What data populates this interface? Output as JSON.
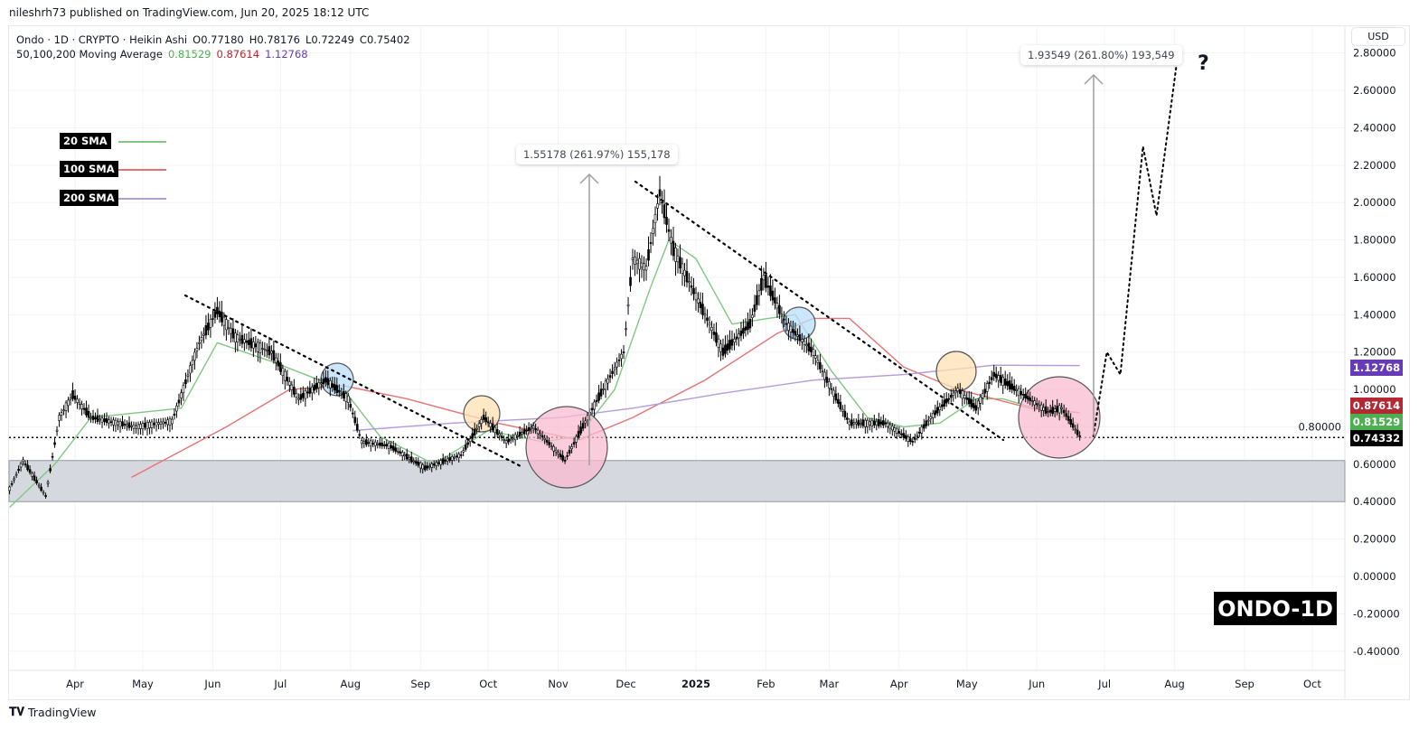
{
  "header": {
    "published": "nileshrh73 published on TradingView.com, Jun 20, 2025 18:12 UTC"
  },
  "legend": {
    "symbol": "Ondo · 1D · CRYPTO · Heikin Ashi",
    "open": "O0.77180",
    "high": "H0.78176",
    "low": "L0.72249",
    "close": "C0.75402",
    "ma_title": "50,100,200 Moving Average",
    "ma1": "0.81529",
    "ma2": "0.87614",
    "ma3": "1.12768"
  },
  "currency": "USD",
  "sma_labels": [
    {
      "label": "20 SMA",
      "color": "#81c784"
    },
    {
      "label": "100 SMA",
      "color": "#e57373"
    },
    {
      "label": "200 SMA",
      "color": "#b39ddb"
    }
  ],
  "callouts": {
    "first": "1.55178 (261.97%) 155,178",
    "second": "1.93549 (261.80%) 193,549",
    "question": "?"
  },
  "price_tags": {
    "ma200": "1.12768",
    "ma100": "0.87614",
    "ma20": "0.81529",
    "last": "0.74332"
  },
  "colors": {
    "ma20": "#4caf50",
    "ma100": "#b22833",
    "ma200": "#673ab7",
    "last": "#000000"
  },
  "watermark": "ONDO-1D",
  "footer": {
    "brand": "TradingView"
  },
  "chart_data": {
    "type": "line",
    "title": "Ondo · 1D · CRYPTO · Heikin Ashi",
    "x_unit": "days since 2024-03-01",
    "x_ticks": [
      {
        "d": 31,
        "label": "Apr"
      },
      {
        "d": 61,
        "label": "May"
      },
      {
        "d": 92,
        "label": "Jun"
      },
      {
        "d": 122,
        "label": "Jul"
      },
      {
        "d": 153,
        "label": "Aug"
      },
      {
        "d": 184,
        "label": "Sep"
      },
      {
        "d": 214,
        "label": "Oct"
      },
      {
        "d": 245,
        "label": "Nov"
      },
      {
        "d": 275,
        "label": "Dec"
      },
      {
        "d": 306,
        "label": "2025"
      },
      {
        "d": 337,
        "label": "Feb"
      },
      {
        "d": 365,
        "label": "Mar"
      },
      {
        "d": 396,
        "label": "Apr"
      },
      {
        "d": 426,
        "label": "May"
      },
      {
        "d": 457,
        "label": "Jun"
      },
      {
        "d": 487,
        "label": "Jul"
      },
      {
        "d": 518,
        "label": "Aug"
      },
      {
        "d": 549,
        "label": "Sep"
      },
      {
        "d": 579,
        "label": "Oct"
      }
    ],
    "y_ticks": [
      "2.80000",
      "2.60000",
      "2.40000",
      "2.20000",
      "2.00000",
      "1.80000",
      "1.60000",
      "1.40000",
      "1.20000",
      "1.00000",
      "0.80000",
      "0.60000",
      "0.40000",
      "0.20000",
      "0.00000",
      "-0.20000",
      "-0.40000"
    ],
    "ylim": [
      -0.48,
      2.9
    ],
    "support_zone": [
      0.4,
      0.62
    ],
    "last_price": 0.74332,
    "series": [
      {
        "name": "Price",
        "color": "#000000",
        "points": [
          [
            2,
            0.47
          ],
          [
            8,
            0.62
          ],
          [
            18,
            0.43
          ],
          [
            24,
            0.85
          ],
          [
            30,
            0.97
          ],
          [
            38,
            0.85
          ],
          [
            58,
            0.8
          ],
          [
            74,
            0.83
          ],
          [
            86,
            1.25
          ],
          [
            94,
            1.42
          ],
          [
            102,
            1.28
          ],
          [
            118,
            1.2
          ],
          [
            130,
            0.95
          ],
          [
            142,
            1.05
          ],
          [
            152,
            0.95
          ],
          [
            158,
            0.72
          ],
          [
            170,
            0.7
          ],
          [
            186,
            0.58
          ],
          [
            202,
            0.65
          ],
          [
            212,
            0.85
          ],
          [
            222,
            0.72
          ],
          [
            234,
            0.8
          ],
          [
            248,
            0.62
          ],
          [
            258,
            0.85
          ],
          [
            274,
            1.2
          ],
          [
            278,
            1.7
          ],
          [
            284,
            1.65
          ],
          [
            290,
            2.05
          ],
          [
            296,
            1.75
          ],
          [
            306,
            1.5
          ],
          [
            318,
            1.2
          ],
          [
            330,
            1.35
          ],
          [
            336,
            1.6
          ],
          [
            346,
            1.35
          ],
          [
            358,
            1.2
          ],
          [
            364,
            1.05
          ],
          [
            374,
            0.82
          ],
          [
            390,
            0.82
          ],
          [
            402,
            0.72
          ],
          [
            410,
            0.85
          ],
          [
            422,
            1.0
          ],
          [
            430,
            0.9
          ],
          [
            438,
            1.08
          ],
          [
            450,
            0.98
          ],
          [
            462,
            0.88
          ],
          [
            468,
            0.9
          ],
          [
            476,
            0.75
          ]
        ]
      },
      {
        "name": "20 SMA",
        "color": "#81c784",
        "points": [
          [
            2,
            0.37
          ],
          [
            22,
            0.6
          ],
          [
            38,
            0.85
          ],
          [
            78,
            0.9
          ],
          [
            94,
            1.25
          ],
          [
            118,
            1.15
          ],
          [
            150,
            1.0
          ],
          [
            166,
            0.75
          ],
          [
            190,
            0.6
          ],
          [
            214,
            0.78
          ],
          [
            238,
            0.72
          ],
          [
            254,
            0.75
          ],
          [
            270,
            1.0
          ],
          [
            286,
            1.55
          ],
          [
            294,
            1.8
          ],
          [
            306,
            1.7
          ],
          [
            322,
            1.35
          ],
          [
            338,
            1.38
          ],
          [
            350,
            1.4
          ],
          [
            366,
            1.1
          ],
          [
            382,
            0.85
          ],
          [
            398,
            0.8
          ],
          [
            414,
            0.82
          ],
          [
            430,
            0.95
          ],
          [
            442,
            0.95
          ],
          [
            462,
            0.88
          ],
          [
            476,
            0.815
          ]
        ]
      },
      {
        "name": "100 SMA",
        "color": "#e57373",
        "points": [
          [
            56,
            0.53
          ],
          [
            98,
            0.8
          ],
          [
            126,
            1.0
          ],
          [
            150,
            1.02
          ],
          [
            178,
            0.95
          ],
          [
            218,
            0.82
          ],
          [
            254,
            0.73
          ],
          [
            278,
            0.85
          ],
          [
            310,
            1.05
          ],
          [
            342,
            1.3
          ],
          [
            358,
            1.38
          ],
          [
            374,
            1.38
          ],
          [
            398,
            1.12
          ],
          [
            422,
            1.0
          ],
          [
            454,
            0.9
          ],
          [
            476,
            0.876
          ]
        ]
      },
      {
        "name": "200 SMA",
        "color": "#b39ddb",
        "points": [
          [
            154,
            0.78
          ],
          [
            198,
            0.82
          ],
          [
            246,
            0.85
          ],
          [
            278,
            0.9
          ],
          [
            318,
            0.98
          ],
          [
            358,
            1.05
          ],
          [
            398,
            1.08
          ],
          [
            438,
            1.13
          ],
          [
            476,
            1.128
          ]
        ]
      },
      {
        "name": "Projection",
        "color": "#000000",
        "points": [
          [
            482,
            0.75
          ],
          [
            488,
            1.2
          ],
          [
            494,
            1.08
          ],
          [
            504,
            2.3
          ],
          [
            510,
            1.93
          ],
          [
            519,
            2.75
          ]
        ]
      }
    ]
  }
}
